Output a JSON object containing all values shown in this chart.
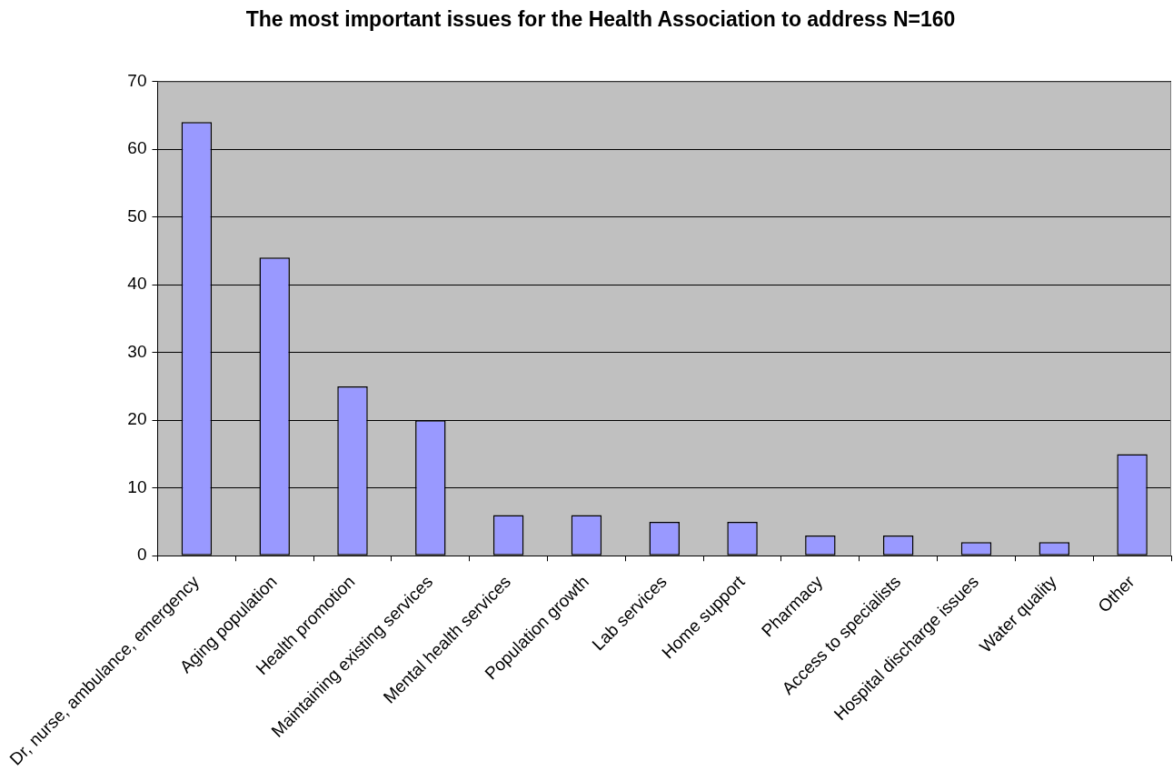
{
  "chart_data": {
    "type": "bar",
    "title": "The most important issues for the Health Association to address N=160",
    "categories": [
      "Dr, nurse, ambulance, emergency",
      "Aging population",
      "Health promotion",
      "Maintaining existing services",
      "Mental health services",
      "Population growth",
      "Lab services",
      "Home support",
      "Pharmacy",
      "Access to specialists",
      "Hospital discharge issues",
      "Water quality",
      "Other"
    ],
    "values": [
      64,
      44,
      25,
      20,
      6,
      6,
      5,
      5,
      3,
      3,
      2,
      2,
      15
    ],
    "color": "#9999ff",
    "ylim": [
      0,
      70
    ],
    "yticks": [
      0,
      10,
      20,
      30,
      40,
      50,
      60,
      70
    ],
    "grid": "y"
  }
}
